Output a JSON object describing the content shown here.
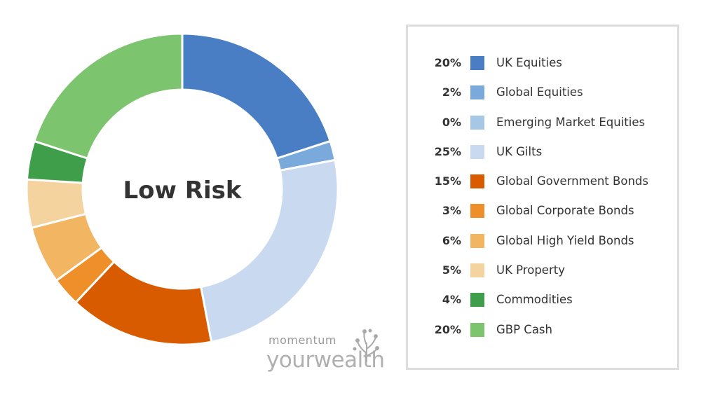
{
  "chart_data": {
    "type": "pie",
    "variant": "donut",
    "center_label": "Low Risk",
    "series": [
      {
        "label": "UK Equities",
        "value": 20,
        "percent_text": "20%",
        "color": "#4a7ec4"
      },
      {
        "label": "Global Equities",
        "value": 2,
        "percent_text": "2%",
        "color": "#7aaadb"
      },
      {
        "label": "Emerging Market Equities",
        "value": 0,
        "percent_text": "0%",
        "color": "#a6c8e6"
      },
      {
        "label": "UK Gilts",
        "value": 25,
        "percent_text": "25%",
        "color": "#c8d9f0"
      },
      {
        "label": "Global Government Bonds",
        "value": 15,
        "percent_text": "15%",
        "color": "#d95b00"
      },
      {
        "label": "Global Corporate Bonds",
        "value": 3,
        "percent_text": "3%",
        "color": "#ef8f29"
      },
      {
        "label": "Global High Yield Bonds",
        "value": 6,
        "percent_text": "6%",
        "color": "#f2b562"
      },
      {
        "label": "UK Property",
        "value": 5,
        "percent_text": "5%",
        "color": "#f5d39f"
      },
      {
        "label": "Commodities",
        "value": 4,
        "percent_text": "4%",
        "color": "#3e9e4a"
      },
      {
        "label": "GBP Cash",
        "value": 20,
        "percent_text": "20%",
        "color": "#7dc46e"
      }
    ],
    "legend_position": "right"
  },
  "logo": {
    "line1": "momentum",
    "line2": "yourwealth"
  }
}
